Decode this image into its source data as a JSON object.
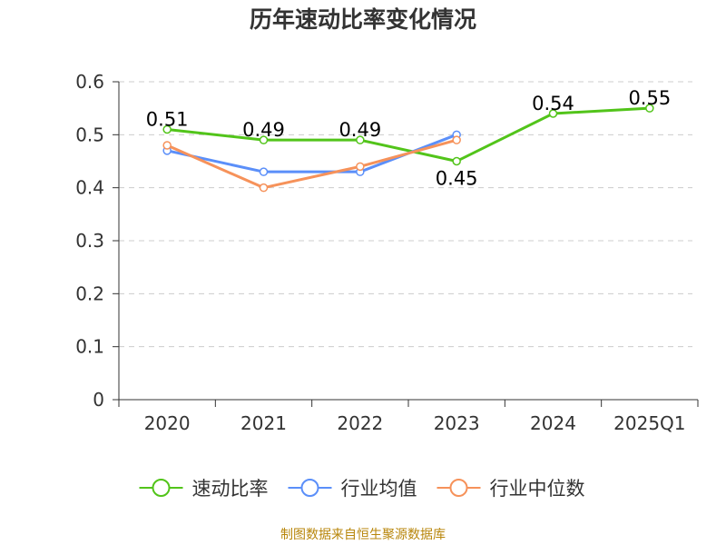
{
  "chart_data": {
    "type": "line",
    "title": "历年速动比率变化情况",
    "categories": [
      "2020",
      "2021",
      "2022",
      "2023",
      "2024",
      "2025Q1"
    ],
    "ylim": [
      0,
      0.6
    ],
    "yticks": [
      "0",
      "0.1",
      "0.2",
      "0.3",
      "0.4",
      "0.5",
      "0.6"
    ],
    "grid": true,
    "legend_position": "bottom",
    "series": [
      {
        "name": "速动比率",
        "color": "#52c41a",
        "values": [
          0.51,
          0.49,
          0.49,
          0.45,
          0.54,
          0.55
        ],
        "labels": [
          "0.51",
          "0.49",
          "0.49",
          "0.45",
          "0.54",
          "0.55"
        ]
      },
      {
        "name": "行业均值",
        "color": "#5b8ff9",
        "values": [
          0.47,
          0.43,
          0.43,
          0.5,
          null,
          null
        ]
      },
      {
        "name": "行业中位数",
        "color": "#f6925a",
        "values": [
          0.48,
          0.4,
          0.44,
          0.49,
          null,
          null
        ]
      }
    ]
  },
  "source": "制图数据来自恒生聚源数据库"
}
